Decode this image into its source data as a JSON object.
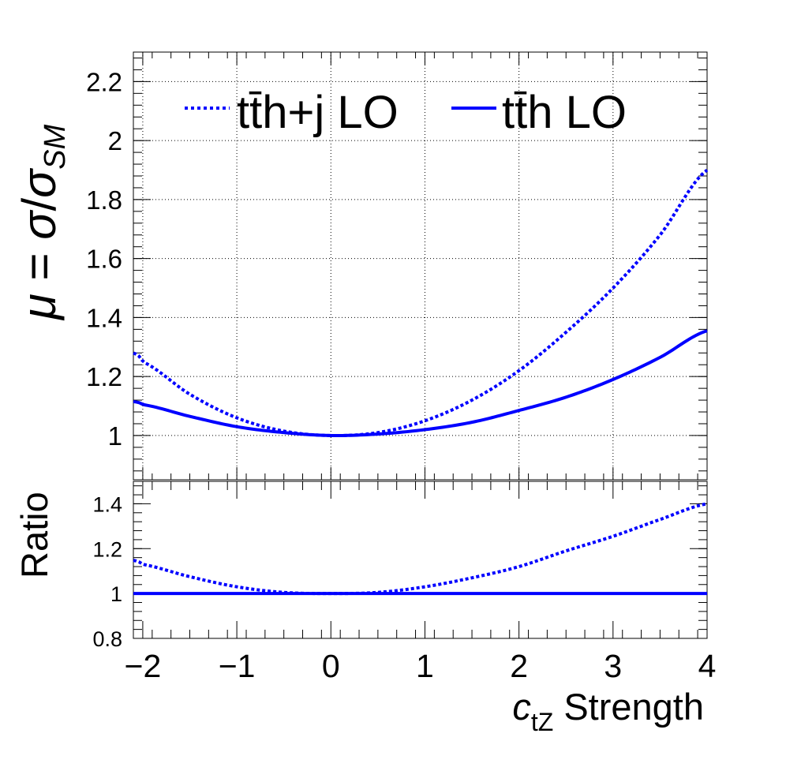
{
  "chart_data": [
    {
      "type": "line",
      "panel": "main",
      "xlim": [
        -2.1,
        4.0
      ],
      "ylim": [
        0.85,
        2.3
      ],
      "y_ticks": [
        1,
        1.2,
        1.4,
        1.6,
        1.8,
        2,
        2.2
      ],
      "y_tick_labels": [
        "1",
        "1.2",
        "1.4",
        "1.6",
        "1.8",
        "2",
        "2.2"
      ],
      "ylabel_parts": {
        "mu": "μ",
        "eq": " = ",
        "sigma": "σ",
        "slash": "/",
        "sigma2": "σ",
        "sub": "SM"
      },
      "grid": true,
      "legend_position": "top",
      "series": [
        {
          "name": "tt̄h+j LO",
          "style": "dotted",
          "color": "#0000ff",
          "x": [
            -2.1,
            -2.0,
            -1.5,
            -1.0,
            -0.5,
            0.0,
            0.5,
            1.0,
            1.5,
            2.0,
            2.5,
            3.0,
            3.5,
            4.0
          ],
          "y": [
            1.28,
            1.25,
            1.14,
            1.06,
            1.015,
            1.0,
            1.01,
            1.05,
            1.12,
            1.22,
            1.35,
            1.5,
            1.68,
            1.9
          ]
        },
        {
          "name": "tt̄h LO",
          "style": "solid",
          "color": "#0000ff",
          "x": [
            -2.1,
            -2.0,
            -1.5,
            -1.0,
            -0.5,
            0.0,
            0.5,
            1.0,
            1.5,
            2.0,
            2.5,
            3.0,
            3.5,
            4.0
          ],
          "y": [
            1.115,
            1.105,
            1.065,
            1.03,
            1.01,
            1.0,
            1.005,
            1.02,
            1.045,
            1.085,
            1.13,
            1.19,
            1.265,
            1.355
          ]
        }
      ]
    },
    {
      "type": "line",
      "panel": "ratio",
      "xlim": [
        -2.1,
        4.0
      ],
      "ylim": [
        0.8,
        1.5
      ],
      "y_ticks": [
        0.8,
        1,
        1.2,
        1.4
      ],
      "y_tick_labels": [
        "0.8",
        "1",
        "1.2",
        "1.4"
      ],
      "x_ticks": [
        -2,
        -1,
        0,
        1,
        2,
        3,
        4
      ],
      "x_tick_labels": [
        "−2",
        "−1",
        "0",
        "1",
        "2",
        "3",
        "4"
      ],
      "ylabel": "Ratio",
      "xlabel_parts": {
        "var": "c",
        "sub": "tZ",
        "rest": " Strength"
      },
      "grid": false,
      "series": [
        {
          "name": "tt̄h+j LO",
          "style": "dotted",
          "color": "#0000ff",
          "x": [
            -2.1,
            -2.0,
            -1.5,
            -1.0,
            -0.5,
            0.0,
            0.5,
            1.0,
            1.5,
            2.0,
            2.5,
            3.0,
            3.5,
            4.0
          ],
          "y": [
            1.148,
            1.13,
            1.075,
            1.03,
            1.005,
            1.0,
            1.005,
            1.03,
            1.07,
            1.12,
            1.19,
            1.255,
            1.33,
            1.4
          ]
        },
        {
          "name": "tt̄h LO",
          "style": "solid",
          "color": "#0000ff",
          "x": [
            -2.1,
            4.0
          ],
          "y": [
            1.0,
            1.0
          ]
        }
      ]
    }
  ]
}
